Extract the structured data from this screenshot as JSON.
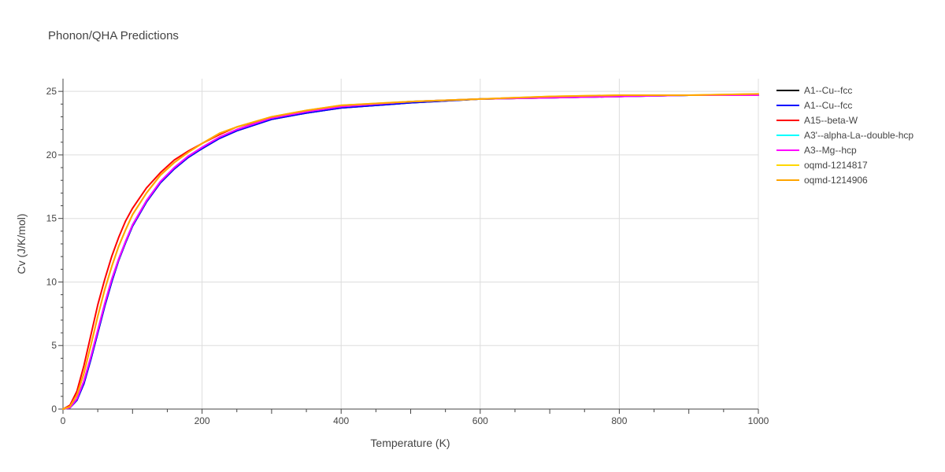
{
  "chart_data": {
    "type": "line",
    "title": "Phonon/QHA Predictions",
    "xlabel": "Temperature (K)",
    "ylabel": "Cv (J/K/mol)",
    "xlim": [
      0,
      1000
    ],
    "ylim": [
      0,
      26
    ],
    "xticks": [
      0,
      200,
      400,
      600,
      800,
      1000
    ],
    "yticks": [
      0,
      5,
      10,
      15,
      20,
      25
    ],
    "grid": true,
    "legend_position": "right",
    "x": [
      0,
      10,
      20,
      30,
      40,
      50,
      60,
      70,
      80,
      90,
      100,
      120,
      140,
      160,
      180,
      200,
      225,
      250,
      300,
      350,
      400,
      500,
      600,
      700,
      800,
      900,
      1000
    ],
    "series": [
      {
        "name": "A1--Cu--fcc",
        "color": "#000000",
        "values": [
          0,
          0.1,
          0.7,
          2.0,
          3.9,
          6.0,
          8.1,
          10.0,
          11.7,
          13.1,
          14.4,
          16.3,
          17.8,
          18.9,
          19.8,
          20.5,
          21.3,
          21.9,
          22.8,
          23.3,
          23.7,
          24.1,
          24.4,
          24.5,
          24.6,
          24.7,
          24.7
        ]
      },
      {
        "name": "A1--Cu--fcc",
        "color": "#0000ff",
        "values": [
          0,
          0.1,
          0.7,
          2.0,
          3.9,
          6.0,
          8.1,
          10.0,
          11.7,
          13.1,
          14.4,
          16.3,
          17.8,
          18.9,
          19.8,
          20.5,
          21.3,
          21.9,
          22.8,
          23.3,
          23.7,
          24.1,
          24.4,
          24.5,
          24.6,
          24.7,
          24.7
        ]
      },
      {
        "name": "A15--beta-W",
        "color": "#ff0000",
        "values": [
          0,
          0.3,
          1.4,
          3.4,
          5.8,
          8.2,
          10.2,
          12.0,
          13.5,
          14.8,
          15.8,
          17.4,
          18.6,
          19.6,
          20.3,
          20.9,
          21.6,
          22.2,
          22.9,
          23.4,
          23.8,
          24.2,
          24.4,
          24.5,
          24.6,
          24.7,
          24.7
        ]
      },
      {
        "name": "A3'--alpha-La--double-hcp",
        "color": "#00ffff",
        "values": [
          0,
          0.1,
          0.8,
          2.2,
          4.1,
          6.2,
          8.3,
          10.2,
          11.8,
          13.2,
          14.5,
          16.4,
          17.9,
          19.0,
          19.9,
          20.6,
          21.4,
          22.0,
          22.9,
          23.4,
          23.8,
          24.2,
          24.4,
          24.5,
          24.6,
          24.7,
          24.7
        ]
      },
      {
        "name": "A3--Mg--hcp",
        "color": "#ff00ff",
        "values": [
          0,
          0.1,
          0.8,
          2.2,
          4.1,
          6.2,
          8.3,
          10.2,
          11.8,
          13.2,
          14.5,
          16.4,
          17.9,
          19.0,
          19.9,
          20.6,
          21.4,
          22.0,
          22.9,
          23.4,
          23.8,
          24.2,
          24.4,
          24.5,
          24.6,
          24.7,
          24.7
        ]
      },
      {
        "name": "oqmd-1214817",
        "color": "#ffd700",
        "values": [
          0,
          0.2,
          1.1,
          2.8,
          5.0,
          7.3,
          9.4,
          11.2,
          12.8,
          14.1,
          15.3,
          17.0,
          18.4,
          19.4,
          20.2,
          20.9,
          21.7,
          22.2,
          23.0,
          23.5,
          23.9,
          24.2,
          24.4,
          24.6,
          24.7,
          24.7,
          24.8
        ]
      },
      {
        "name": "oqmd-1214906",
        "color": "#ffa500",
        "values": [
          0,
          0.2,
          1.1,
          2.8,
          5.0,
          7.3,
          9.4,
          11.2,
          12.8,
          14.1,
          15.3,
          17.0,
          18.4,
          19.4,
          20.2,
          20.9,
          21.7,
          22.2,
          23.0,
          23.5,
          23.9,
          24.2,
          24.4,
          24.6,
          24.7,
          24.7,
          24.8
        ]
      }
    ]
  }
}
